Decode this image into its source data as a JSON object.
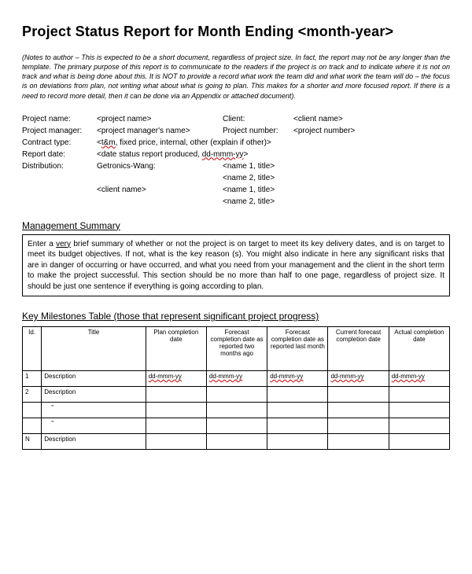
{
  "title": "Project Status Report for Month Ending <month-year>",
  "notes": "(Notes to author – This is expected to be a short document, regardless of project size. In fact, the report may not be any longer than the template. The primary purpose of this report is to communicate to the readers if the project is on track and to indicate where it is not on track and what is being done about this. It is NOT to provide a record what work the team did and what work the team will do – the focus is on deviations from plan, not writing what about what is going to plan. This makes for a shorter and more focused report. If there is a need to record more detail, then it can be done via an Appendix or attached document).",
  "fields": {
    "projectNameLbl": "Project name:",
    "projectNameVal": "<project name>",
    "clientLbl": "Client:",
    "clientVal": "<client name>",
    "pmLbl": "Project manager:",
    "pmVal": "<project manager's name>",
    "pnumLbl": "Project number:",
    "pnumVal": "<project number>",
    "contractLbl": "Contract type:",
    "contractPre": "<",
    "contractWavy": "t&m",
    "contractPost": ", fixed price, internal, other (explain if other)>",
    "reportLbl": "Report date:",
    "reportPre": "<date status report produced, ",
    "reportWavy": "dd-mmm-yy",
    "reportPost": ">",
    "distLbl": "Distribution:",
    "distOrg": "Getronics-Wang:",
    "distN1": "<name 1, title>",
    "distN2": "<name 2, title>",
    "distClientLbl": "<client name>",
    "distCN1": "<name 1, title>",
    "distCN2": "<name 2, title>"
  },
  "mgmt": {
    "heading": "Management Summary",
    "pre": "Enter a ",
    "very": "very",
    "body": " brief summary of whether or not the project is on target to meet its key delivery dates, and is on target to meet its budget objectives.    If not, what is the key reason (s). You might also indicate in here any significant risks that are in danger of occurring or have occurred, and what you need from your management and the client in the short term to make the project successful. This section should be no more than half to one page, regardless of project size. It should be just one sentence if everything is going according to plan."
  },
  "milestones": {
    "heading": "Key Milestones Table (those that represent significant project progress)",
    "cols": {
      "id": "Id.",
      "title": "Title",
      "plan": "Plan completion date",
      "f2": "Forecast completion date as reported two months ago",
      "f1": "Forecast completion date as reported last month",
      "cur": "Current forecast completion date",
      "act": "Actual completion date"
    },
    "wavy": "dd-mmm-yy",
    "rows": [
      {
        "id": "1",
        "title": "Description"
      },
      {
        "id": "2",
        "title": "Description"
      },
      {
        "id": "",
        "title": "\"",
        "indent": true
      },
      {
        "id": "",
        "title": "\"",
        "indent": true
      },
      {
        "id": "N",
        "title": "Description"
      }
    ]
  },
  "colors": {
    "wavy": "#cc0000",
    "text": "#000000",
    "bg": "#ffffff"
  }
}
